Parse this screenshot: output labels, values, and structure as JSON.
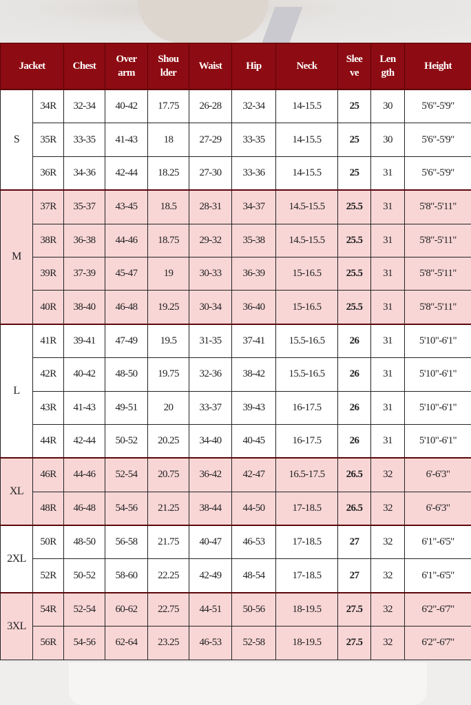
{
  "headers": [
    "Jacket",
    "Chest",
    "Over arm",
    "Shou lder",
    "Waist",
    "Hip",
    "Neck",
    "Slee ve",
    "Len gth",
    "Height"
  ],
  "header_lines": [
    [
      "Jacket"
    ],
    [
      "Chest"
    ],
    [
      "Over",
      "arm"
    ],
    [
      "Shou",
      "lder"
    ],
    [
      "Waist"
    ],
    [
      "Hip"
    ],
    [
      "Neck"
    ],
    [
      "Slee",
      "ve"
    ],
    [
      "Len",
      "gth"
    ],
    [
      "Height"
    ]
  ],
  "colors": {
    "header_bg": "#8d0b12",
    "header_text": "#ffffff",
    "pink_row": "#f9d6d6",
    "white_row": "#ffffff"
  },
  "groups": [
    {
      "size": "S",
      "shade": "white",
      "rows": [
        [
          "34R",
          "32-34",
          "40-42",
          "17.75",
          "26-28",
          "32-34",
          "14-15.5",
          "25",
          "30",
          "5'6\"-5'9\""
        ],
        [
          "35R",
          "33-35",
          "41-43",
          "18",
          "27-29",
          "33-35",
          "14-15.5",
          "25",
          "30",
          "5'6\"-5'9\""
        ],
        [
          "36R",
          "34-36",
          "42-44",
          "18.25",
          "27-30",
          "33-36",
          "14-15.5",
          "25",
          "31",
          "5'6\"-5'9\""
        ]
      ]
    },
    {
      "size": "M",
      "shade": "pink",
      "rows": [
        [
          "37R",
          "35-37",
          "43-45",
          "18.5",
          "28-31",
          "34-37",
          "14.5-15.5",
          "25.5",
          "31",
          "5'8\"-5'11\""
        ],
        [
          "38R",
          "36-38",
          "44-46",
          "18.75",
          "29-32",
          "35-38",
          "14.5-15.5",
          "25.5",
          "31",
          "5'8\"-5'11\""
        ],
        [
          "39R",
          "37-39",
          "45-47",
          "19",
          "30-33",
          "36-39",
          "15-16.5",
          "25.5",
          "31",
          "5'8\"-5'11\""
        ],
        [
          "40R",
          "38-40",
          "46-48",
          "19.25",
          "30-34",
          "36-40",
          "15-16.5",
          "25.5",
          "31",
          "5'8\"-5'11\""
        ]
      ]
    },
    {
      "size": "L",
      "shade": "white",
      "rows": [
        [
          "41R",
          "39-41",
          "47-49",
          "19.5",
          "31-35",
          "37-41",
          "15.5-16.5",
          "26",
          "31",
          "5'10\"-6'1\""
        ],
        [
          "42R",
          "40-42",
          "48-50",
          "19.75",
          "32-36",
          "38-42",
          "15.5-16.5",
          "26",
          "31",
          "5'10\"-6'1\""
        ],
        [
          "43R",
          "41-43",
          "49-51",
          "20",
          "33-37",
          "39-43",
          "16-17.5",
          "26",
          "31",
          "5'10\"-6'1\""
        ],
        [
          "44R",
          "42-44",
          "50-52",
          "20.25",
          "34-40",
          "40-45",
          "16-17.5",
          "26",
          "31",
          "5'10\"-6'1\""
        ]
      ]
    },
    {
      "size": "XL",
      "shade": "pink",
      "rows": [
        [
          "46R",
          "44-46",
          "52-54",
          "20.75",
          "36-42",
          "42-47",
          "16.5-17.5",
          "26.5",
          "32",
          "6'-6'3\""
        ],
        [
          "48R",
          "46-48",
          "54-56",
          "21.25",
          "38-44",
          "44-50",
          "17-18.5",
          "26.5",
          "32",
          "6'-6'3\""
        ]
      ]
    },
    {
      "size": "2XL",
      "shade": "white",
      "rows": [
        [
          "50R",
          "48-50",
          "56-58",
          "21.75",
          "40-47",
          "46-53",
          "17-18.5",
          "27",
          "32",
          "6'1\"-6'5\""
        ],
        [
          "52R",
          "50-52",
          "58-60",
          "22.25",
          "42-49",
          "48-54",
          "17-18.5",
          "27",
          "32",
          "6'1\"-6'5\""
        ]
      ]
    },
    {
      "size": "3XL",
      "shade": "pink",
      "rows": [
        [
          "54R",
          "52-54",
          "60-62",
          "22.75",
          "44-51",
          "50-56",
          "18-19.5",
          "27.5",
          "32",
          "6'2\"-6'7\""
        ],
        [
          "56R",
          "54-56",
          "62-64",
          "23.25",
          "46-53",
          "52-58",
          "18-19.5",
          "27.5",
          "32",
          "6'2\"-6'7\""
        ]
      ]
    }
  ]
}
